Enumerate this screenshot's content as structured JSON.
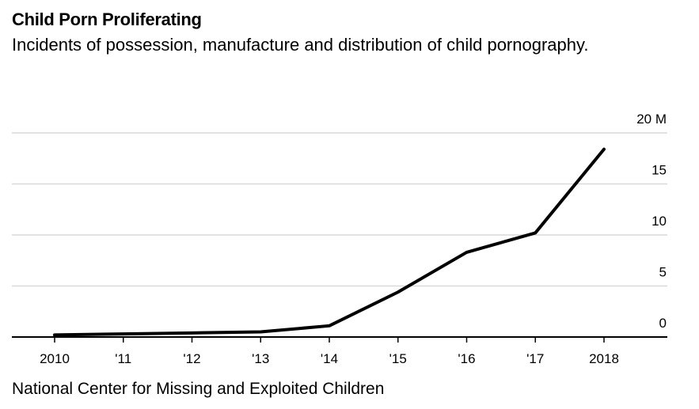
{
  "title": "Child Porn Proliferating",
  "subtitle": "Incidents of possession, manufacture and distribution of child pornography.",
  "source": "National Center for Missing and Exploited Children",
  "colors": {
    "line": "#000000",
    "grid": "#d9d9d9",
    "axis": "#000000"
  },
  "chart_data": {
    "type": "line",
    "x": [
      2010,
      2011,
      2012,
      2013,
      2014,
      2015,
      2016,
      2017,
      2018
    ],
    "x_tick_labels": [
      "2010",
      "'11",
      "'12",
      "'13",
      "'14",
      "'15",
      "'16",
      "'17",
      "2018"
    ],
    "series": [
      {
        "values": [
          0.2,
          0.3,
          0.4,
          0.5,
          1.1,
          4.4,
          8.3,
          10.2,
          18.4
        ]
      }
    ],
    "ylim": [
      0,
      20
    ],
    "y_ticks": [
      0,
      5,
      10,
      15,
      20
    ],
    "y_tick_labels": [
      "0",
      "5",
      "10",
      "15",
      "20 M"
    ],
    "y_axis_position": "right",
    "grid": true
  }
}
